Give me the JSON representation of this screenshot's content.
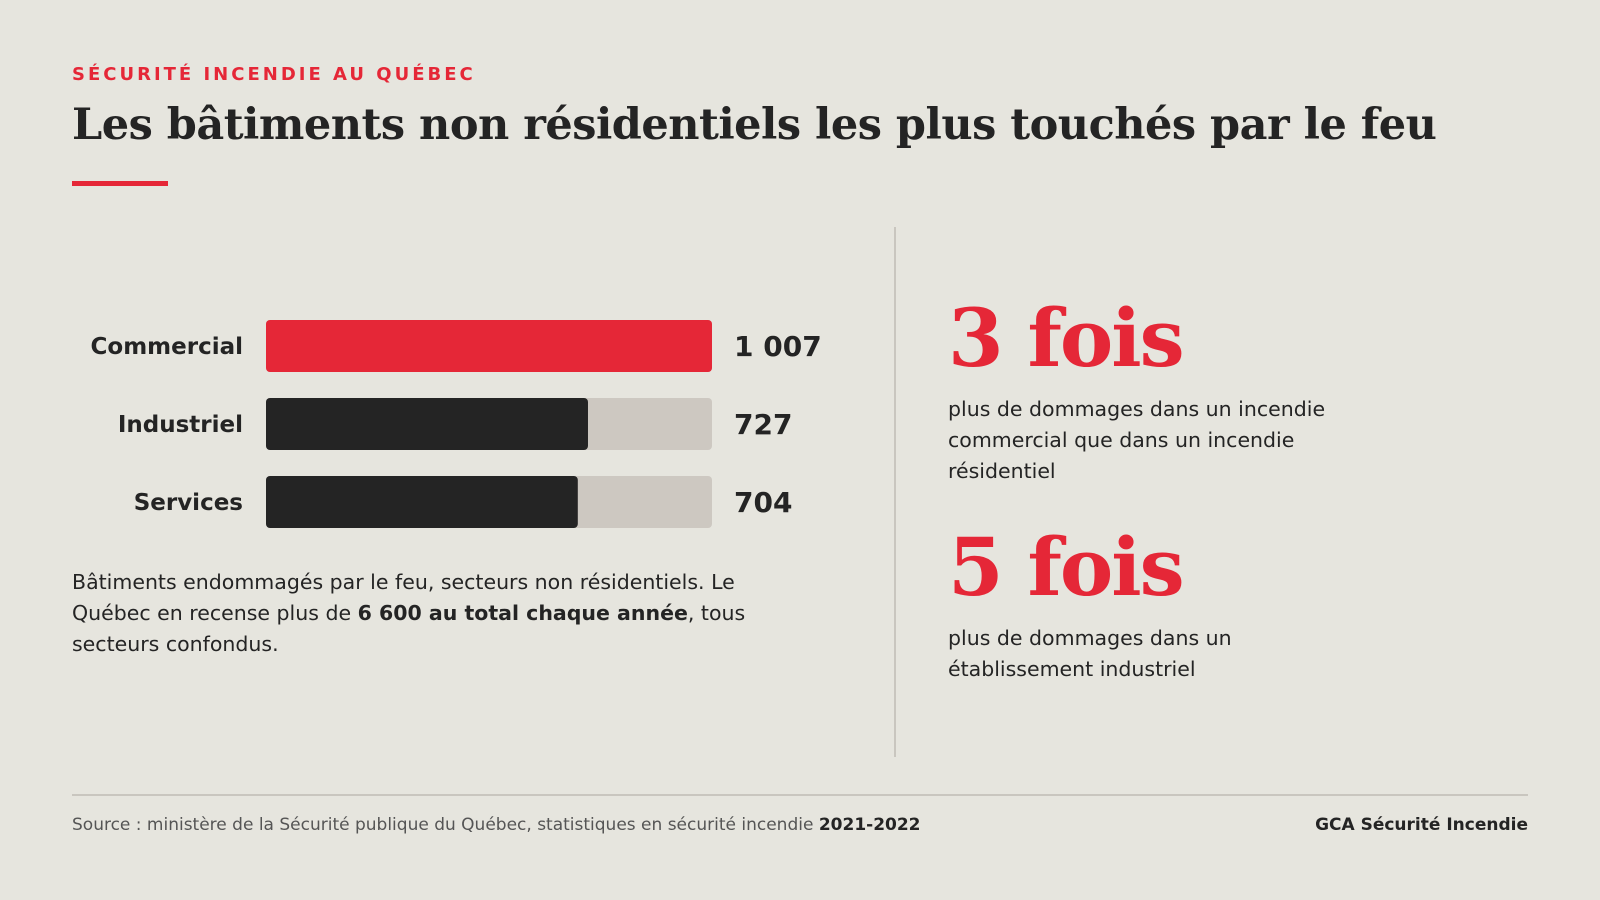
{
  "kicker": "SÉCURITÉ INCENDIE AU QUÉBEC",
  "title": "Les bâtiments non résidentiels les plus touchés par le feu",
  "colors": {
    "accent": "#e52737",
    "dark_bar": "#242424",
    "track": "#cdc8c1",
    "background": "#e6e5de"
  },
  "chart_data": {
    "type": "bar",
    "orientation": "horizontal",
    "categories": [
      "Commercial",
      "Industriel",
      "Services"
    ],
    "values": [
      1007,
      727,
      704
    ],
    "value_labels": [
      "1 007",
      "727",
      "704"
    ],
    "max": 1007,
    "highlight": "Commercial",
    "grid": false,
    "legend": "none"
  },
  "caption": {
    "before": "Bâtiments endommagés par le feu, secteurs non résidentiels. Le Québec en recense plus de ",
    "bold": "6 600 au total chaque année",
    "after": ", tous secteurs confondus."
  },
  "stats": [
    {
      "big": "3 fois",
      "desc": "plus de dommages dans un incendie commercial que dans un incendie résidentiel"
    },
    {
      "big": "5 fois",
      "desc": "plus de dommages dans un établissement industriel"
    }
  ],
  "footer": {
    "source_text": "Source : ministère de la Sécurité publique du Québec, statistiques en sécurité incendie ",
    "source_years": "2021-2022",
    "brand": "GCA Sécurité Incendie"
  }
}
